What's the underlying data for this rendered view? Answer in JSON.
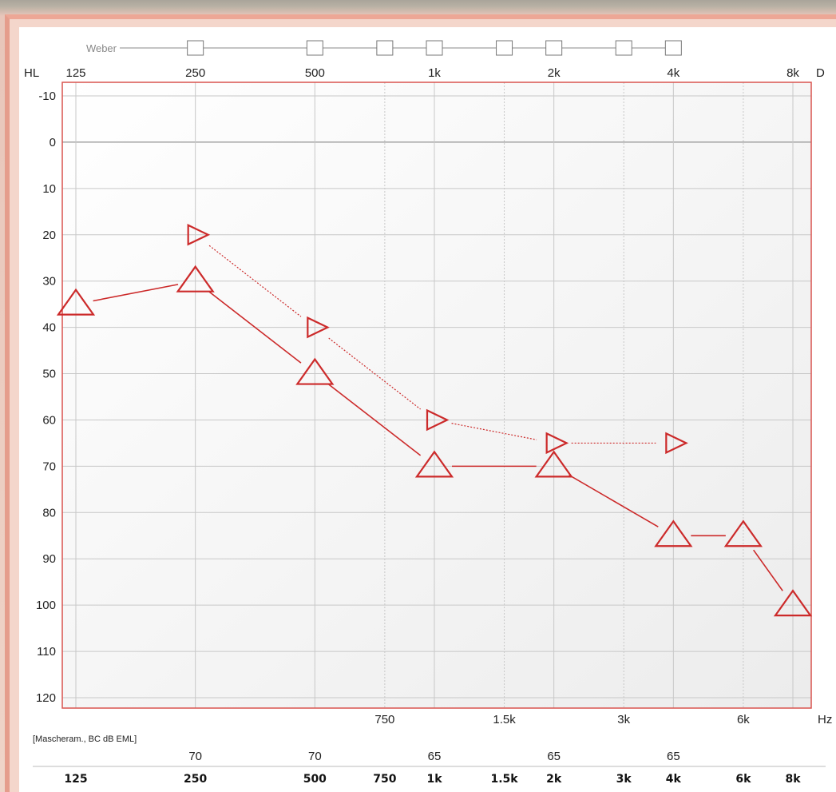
{
  "colors": {
    "series": "#cc2a2a",
    "plot_border": "#d9534f",
    "grid": "#c8c8c8",
    "zero_line": "#777777"
  },
  "weber": {
    "label": "Weber",
    "boxes": [
      "250",
      "500",
      "750",
      "1k",
      "1.5k",
      "2k",
      "3k",
      "4k"
    ]
  },
  "masking": {
    "label": "[Mascheram., BC dB EML]",
    "values": [
      {
        "freq": "250",
        "value": "70"
      },
      {
        "freq": "500",
        "value": "70"
      },
      {
        "freq": "1k",
        "value": "65"
      },
      {
        "freq": "2k",
        "value": "65"
      },
      {
        "freq": "4k",
        "value": "65"
      }
    ],
    "freq_labels": [
      "125",
      "250",
      "500",
      "750",
      "1k",
      "1.5k",
      "2k",
      "3k",
      "4k",
      "6k",
      "8k"
    ]
  },
  "chart_data": {
    "type": "line",
    "xlabel": "Hz",
    "ylabel": "HL",
    "x_top_ticks": [
      "125",
      "250",
      "500",
      "1k",
      "2k",
      "4k",
      "8k"
    ],
    "x_mid_ticks": [
      "750",
      "1.5k",
      "3k",
      "6k"
    ],
    "y_ticks": [
      "-10",
      "0",
      "10",
      "20",
      "30",
      "40",
      "50",
      "60",
      "70",
      "80",
      "90",
      "100",
      "110",
      "120"
    ],
    "ylim": [
      -10,
      120
    ],
    "y_inverted": true,
    "x_scale": "log2",
    "grid": true,
    "corner_label": "D",
    "series": [
      {
        "marker": "triangle-up",
        "line": "solid",
        "points": [
          {
            "x": 125,
            "y": 35
          },
          {
            "x": 250,
            "y": 30
          },
          {
            "x": 500,
            "y": 50
          },
          {
            "x": 1000,
            "y": 70
          },
          {
            "x": 2000,
            "y": 70
          },
          {
            "x": 4000,
            "y": 85
          },
          {
            "x": 6000,
            "y": 85
          },
          {
            "x": 8000,
            "y": 100
          }
        ]
      },
      {
        "marker": "triangle-right",
        "line": "dotted",
        "points": [
          {
            "x": 250,
            "y": 20
          },
          {
            "x": 500,
            "y": 40
          },
          {
            "x": 1000,
            "y": 60
          },
          {
            "x": 2000,
            "y": 65
          },
          {
            "x": 4000,
            "y": 65
          }
        ]
      }
    ]
  }
}
